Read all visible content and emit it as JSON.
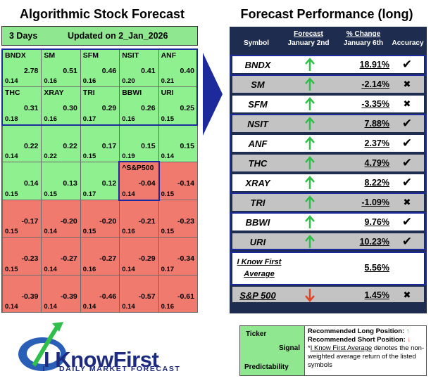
{
  "left_panel": {
    "title": "Algorithmic Stock Forecast",
    "header": {
      "days": "3 Days",
      "updated": "Updated on 2_Jan_2026"
    },
    "grid": [
      [
        {
          "symbol": "BNDX",
          "signal": "2.78",
          "pred": "0.14",
          "color": "g"
        },
        {
          "symbol": "SM",
          "signal": "0.51",
          "pred": "0.16",
          "color": "g"
        },
        {
          "symbol": "SFM",
          "signal": "0.46",
          "pred": "0.16",
          "color": "g"
        },
        {
          "symbol": "NSIT",
          "signal": "0.41",
          "pred": "0.20",
          "color": "g"
        },
        {
          "symbol": "ANF",
          "signal": "0.40",
          "pred": "0.21",
          "color": "g"
        }
      ],
      [
        {
          "symbol": "THC",
          "signal": "0.31",
          "pred": "0.18",
          "color": "g"
        },
        {
          "symbol": "XRAY",
          "signal": "0.30",
          "pred": "0.16",
          "color": "g"
        },
        {
          "symbol": "TRI",
          "signal": "0.29",
          "pred": "0.17",
          "color": "g"
        },
        {
          "symbol": "BBWI",
          "signal": "0.26",
          "pred": "0.16",
          "color": "g"
        },
        {
          "symbol": "URI",
          "signal": "0.25",
          "pred": "0.15",
          "color": "g"
        }
      ],
      [
        {
          "symbol": "",
          "signal": "0.22",
          "pred": "0.14",
          "color": "g"
        },
        {
          "symbol": "",
          "signal": "0.22",
          "pred": "0.22",
          "color": "g"
        },
        {
          "symbol": "",
          "signal": "0.17",
          "pred": "0.15",
          "color": "g"
        },
        {
          "symbol": "",
          "signal": "0.15",
          "pred": "0.19",
          "color": "g"
        },
        {
          "symbol": "",
          "signal": "0.15",
          "pred": "0.14",
          "color": "g"
        }
      ],
      [
        {
          "symbol": "",
          "signal": "0.14",
          "pred": "0.15",
          "color": "g"
        },
        {
          "symbol": "",
          "signal": "0.13",
          "pred": "0.15",
          "color": "g"
        },
        {
          "symbol": "",
          "signal": "0.12",
          "pred": "0.17",
          "color": "g"
        },
        {
          "symbol": "^S&P500",
          "signal": "-0.04",
          "pred": "0.14",
          "color": "r"
        },
        {
          "symbol": "",
          "signal": "-0.14",
          "pred": "0.15",
          "color": "r"
        }
      ],
      [
        {
          "symbol": "",
          "signal": "-0.17",
          "pred": "0.15",
          "color": "r"
        },
        {
          "symbol": "",
          "signal": "-0.20",
          "pred": "0.14",
          "color": "r"
        },
        {
          "symbol": "",
          "signal": "-0.20",
          "pred": "0.15",
          "color": "r"
        },
        {
          "symbol": "",
          "signal": "-0.21",
          "pred": "0.16",
          "color": "r"
        },
        {
          "symbol": "",
          "signal": "-0.23",
          "pred": "0.15",
          "color": "r"
        }
      ],
      [
        {
          "symbol": "",
          "signal": "-0.23",
          "pred": "0.15",
          "color": "r"
        },
        {
          "symbol": "",
          "signal": "-0.27",
          "pred": "0.14",
          "color": "r"
        },
        {
          "symbol": "",
          "signal": "-0.27",
          "pred": "0.16",
          "color": "r"
        },
        {
          "symbol": "",
          "signal": "-0.29",
          "pred": "0.14",
          "color": "r"
        },
        {
          "symbol": "",
          "signal": "-0.34",
          "pred": "0.17",
          "color": "r"
        }
      ],
      [
        {
          "symbol": "",
          "signal": "-0.39",
          "pred": "0.14",
          "color": "r"
        },
        {
          "symbol": "",
          "signal": "-0.39",
          "pred": "0.14",
          "color": "r"
        },
        {
          "symbol": "",
          "signal": "-0.46",
          "pred": "0.14",
          "color": "r"
        },
        {
          "symbol": "",
          "signal": "-0.57",
          "pred": "0.14",
          "color": "r"
        },
        {
          "symbol": "",
          "signal": "-0.61",
          "pred": "0.16",
          "color": "r"
        }
      ]
    ]
  },
  "right_panel": {
    "title": "Forecast Performance (long)",
    "columns": {
      "symbol": "Symbol",
      "forecast": "Forecast",
      "forecast_date": "January 2nd",
      "change": "% Change",
      "change_date": "January 6th",
      "accuracy": "Accuracy"
    },
    "rows": [
      {
        "symbol": "BNDX",
        "direction": "up",
        "change": "18.91%",
        "accuracy": "check",
        "shade": "w"
      },
      {
        "symbol": "SM",
        "direction": "up",
        "change": "-2.14%",
        "accuracy": "cross",
        "shade": "gr"
      },
      {
        "symbol": "SFM",
        "direction": "up",
        "change": "-3.35%",
        "accuracy": "cross",
        "shade": "w"
      },
      {
        "symbol": "NSIT",
        "direction": "up",
        "change": "7.88%",
        "accuracy": "check",
        "shade": "gr"
      },
      {
        "symbol": "ANF",
        "direction": "up",
        "change": "2.37%",
        "accuracy": "check",
        "shade": "w"
      },
      {
        "symbol": "THC",
        "direction": "up",
        "change": "4.79%",
        "accuracy": "check",
        "shade": "gr"
      },
      {
        "symbol": "XRAY",
        "direction": "up",
        "change": "8.22%",
        "accuracy": "check",
        "shade": "w"
      },
      {
        "symbol": "TRI",
        "direction": "up",
        "change": "-1.09%",
        "accuracy": "cross",
        "shade": "gr"
      },
      {
        "symbol": "BBWI",
        "direction": "up",
        "change": "9.76%",
        "accuracy": "check",
        "shade": "w"
      },
      {
        "symbol": "URI",
        "direction": "up",
        "change": "10.23%",
        "accuracy": "check",
        "shade": "gr"
      }
    ],
    "average": {
      "label_line1": "I Know First",
      "label_line2": "Average",
      "change": "5.56%"
    },
    "benchmark": {
      "symbol": "S&P 500",
      "direction": "down",
      "change": "1.45%",
      "accuracy": "cross"
    }
  },
  "logo": {
    "brand": "I KnowFirst",
    "tagline": "DAILY MARKET FORECAST"
  },
  "legend": {
    "ticker": "Ticker",
    "signal": "Signal",
    "predictability": "Predictability",
    "long_label": "Recommended Long Position:",
    "short_label": "Recommended Short Position:",
    "avg_term": "I Know First Average",
    "avg_desc": "denotes the non-weighted average return of the listed symbols"
  },
  "colors": {
    "positive_cell": "#8ef08e",
    "negative_cell": "#f07a6e",
    "highlight": "#1c2a9c",
    "table_bg": "#1e2d4f",
    "up_arrow": "#2fbf4a",
    "down_arrow": "#e0452a"
  },
  "icons": {
    "pointer": "chevron-arrow-icon",
    "up": "green-up-arrow-icon",
    "down": "red-down-arrow-icon",
    "check": "check-mark-icon",
    "cross": "cross-mark-icon"
  }
}
